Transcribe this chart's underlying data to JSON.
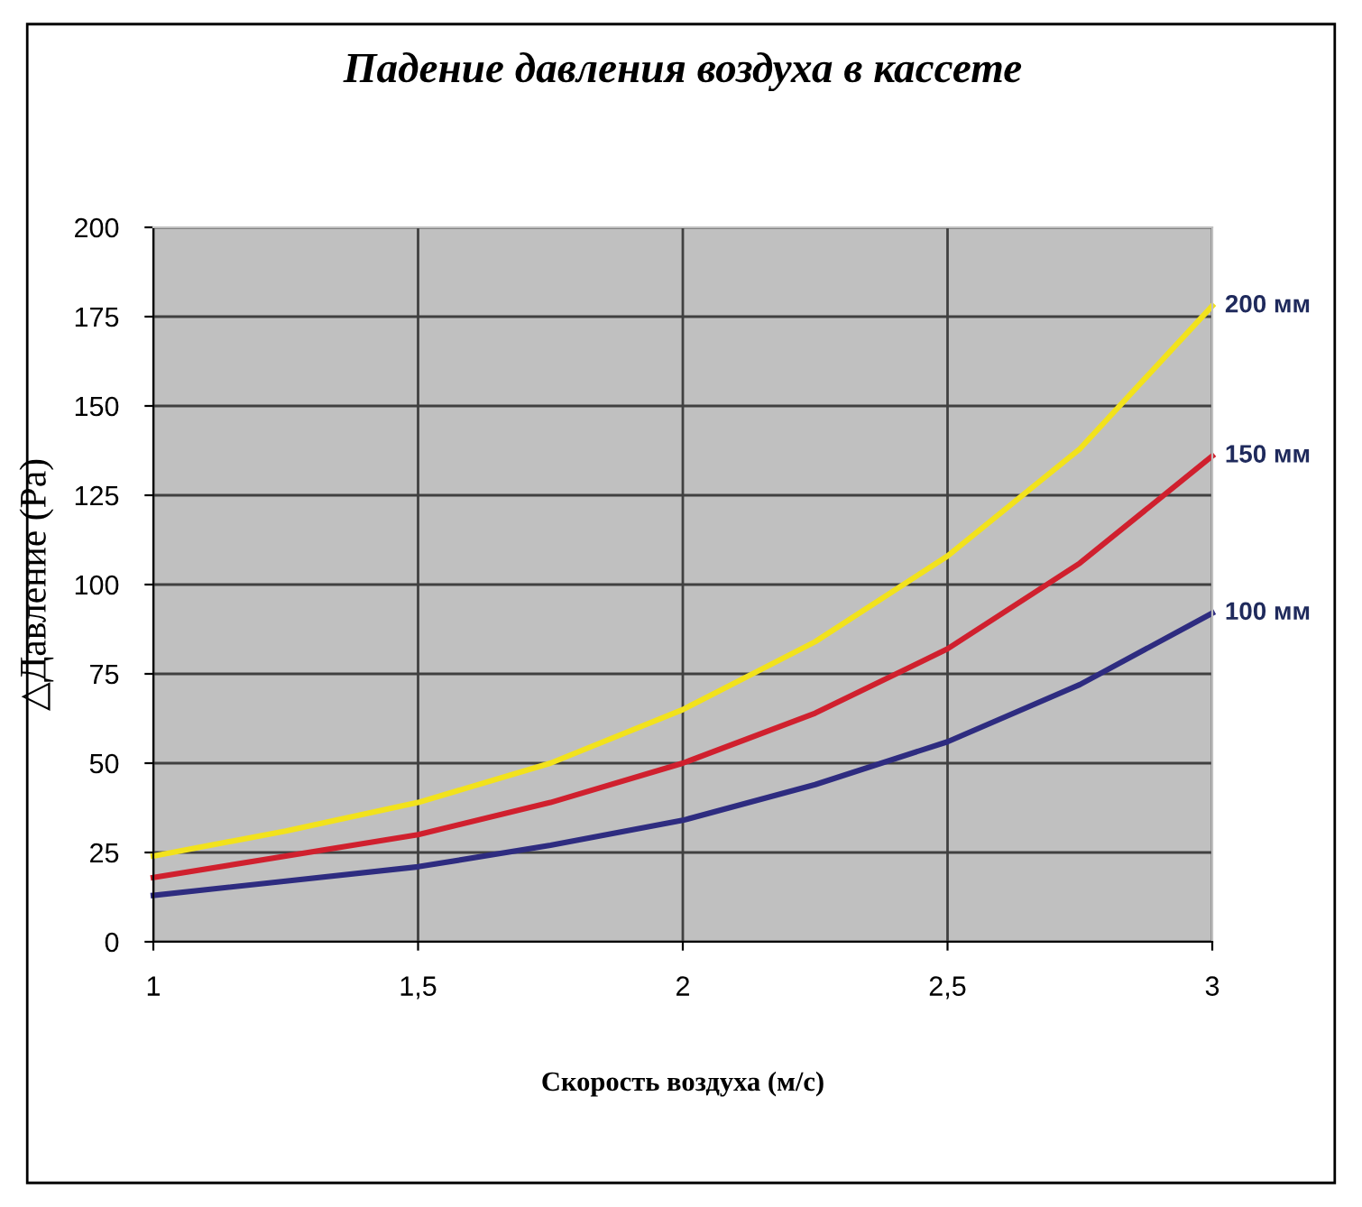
{
  "chart_data": {
    "type": "line",
    "title": "Падение давления воздуха в кассете",
    "xlabel": "Скорость воздуха (м/с)",
    "ylabel": "△Давление (Pa)",
    "x": [
      1,
      1.25,
      1.5,
      1.75,
      2,
      2.25,
      2.5,
      2.75,
      3
    ],
    "series": [
      {
        "name": "200 мм",
        "color": "#f2e21c",
        "values": [
          24,
          31,
          39,
          50,
          65,
          84,
          108,
          138,
          178
        ]
      },
      {
        "name": "150 мм",
        "color": "#d0202e",
        "values": [
          18,
          24,
          30,
          39,
          50,
          64,
          82,
          106,
          136
        ]
      },
      {
        "name": "100 мм",
        "color": "#2e2c80",
        "values": [
          13,
          17,
          21,
          27,
          34,
          44,
          56,
          72,
          92
        ]
      }
    ],
    "xlim": [
      1,
      3
    ],
    "xticks": [
      1,
      {
        "value": 1.5,
        "label": "1,5"
      },
      2,
      {
        "value": 2.5,
        "label": "2,5"
      },
      3
    ],
    "ylim": [
      0,
      200
    ],
    "yticks": [
      0,
      25,
      50,
      75,
      100,
      125,
      150,
      175,
      200
    ],
    "grid": true,
    "marker": "none",
    "line_style": "solid",
    "legend": false
  }
}
